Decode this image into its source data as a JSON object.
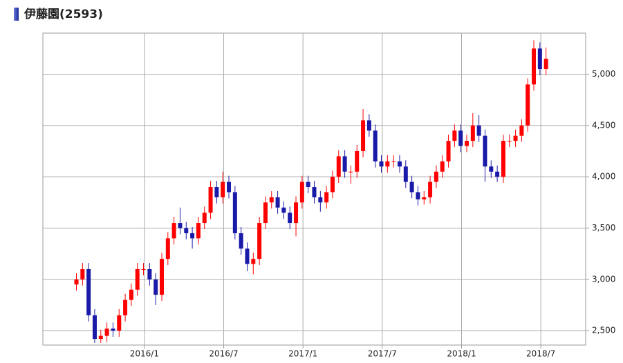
{
  "chart_data": {
    "type": "candlestick",
    "title": "伊藤園(2593)",
    "xlim": [
      0,
      178
    ],
    "ylim": [
      2360,
      5400
    ],
    "yticks": [
      {
        "value": 2500,
        "label": "2,500"
      },
      {
        "value": 3000,
        "label": "3,000"
      },
      {
        "value": 3500,
        "label": "3,500"
      },
      {
        "value": 4000,
        "label": "4,000"
      },
      {
        "value": 4500,
        "label": "4,500"
      },
      {
        "value": 5000,
        "label": "5,000"
      }
    ],
    "xticks": [
      {
        "value": 33.3,
        "label": "2016/1"
      },
      {
        "value": 59.3,
        "label": "2016/7"
      },
      {
        "value": 85.3,
        "label": "2017/1"
      },
      {
        "value": 111.3,
        "label": "2017/7"
      },
      {
        "value": 137.3,
        "label": "2018/1"
      },
      {
        "value": 163.3,
        "label": "2018/7"
      }
    ],
    "grid": true,
    "up_color": "#ff0000",
    "down_color": "#1a1aa8",
    "x": [
      11,
      13,
      15,
      17,
      19,
      21,
      23,
      25,
      27,
      29,
      31,
      33,
      35,
      37,
      39,
      41,
      43,
      45,
      47,
      49,
      51,
      53,
      55,
      57,
      59,
      61,
      63,
      65,
      67,
      69,
      71,
      73,
      75,
      77,
      79,
      81,
      83,
      85,
      87,
      89,
      91,
      93,
      95,
      97,
      99,
      101,
      103,
      105,
      107,
      109,
      111,
      113,
      115,
      117,
      119,
      121,
      123,
      125,
      127,
      129,
      131,
      133,
      135,
      137,
      139,
      141,
      143,
      145,
      147,
      149,
      151,
      153,
      155,
      157,
      159,
      161,
      163,
      165
    ],
    "open": [
      2950,
      3000,
      3100,
      2650,
      2420,
      2450,
      2520,
      2500,
      2650,
      2800,
      2900,
      3100,
      3100,
      3000,
      2850,
      3200,
      3400,
      3550,
      3500,
      3450,
      3400,
      3550,
      3650,
      3900,
      3800,
      3950,
      3850,
      3450,
      3300,
      3150,
      3200,
      3550,
      3750,
      3800,
      3700,
      3650,
      3550,
      3750,
      3950,
      3900,
      3800,
      3750,
      3850,
      4000,
      4200,
      4050,
      4050,
      4250,
      4550,
      4450,
      4150,
      4100,
      4150,
      4150,
      4100,
      3950,
      3850,
      3780,
      3800,
      3950,
      4050,
      4150,
      4350,
      4450,
      4300,
      4350,
      4500,
      4400,
      4100,
      4050,
      4000,
      4350,
      4350,
      4400,
      4500,
      4900,
      5250,
      5050
    ],
    "high": [
      3060,
      3160,
      3160,
      2710,
      2510,
      2580,
      2580,
      2710,
      2860,
      2960,
      3160,
      3160,
      3160,
      3060,
      3260,
      3460,
      3610,
      3700,
      3560,
      3510,
      3610,
      3710,
      3960,
      3960,
      4050,
      4010,
      3910,
      3510,
      3360,
      3260,
      3610,
      3810,
      3860,
      3860,
      3760,
      3710,
      3810,
      4010,
      4010,
      3960,
      3860,
      3910,
      4060,
      4260,
      4260,
      4110,
      4310,
      4660,
      4610,
      4510,
      4210,
      4210,
      4210,
      4210,
      4160,
      4010,
      3910,
      3860,
      4010,
      4110,
      4210,
      4410,
      4510,
      4510,
      4410,
      4620,
      4600,
      4460,
      4160,
      4110,
      4410,
      4410,
      4460,
      4560,
      4960,
      5330,
      5310,
      5260
    ],
    "low": [
      2890,
      2940,
      2590,
      2380,
      2380,
      2390,
      2440,
      2440,
      2590,
      2740,
      2840,
      3040,
      2940,
      2750,
      2790,
      3140,
      3340,
      3440,
      3390,
      3300,
      3340,
      3490,
      3590,
      3740,
      3740,
      3790,
      3390,
      3240,
      3080,
      3050,
      3140,
      3490,
      3690,
      3640,
      3590,
      3490,
      3420,
      3690,
      3840,
      3740,
      3660,
      3690,
      3790,
      3940,
      3990,
      3930,
      3990,
      4190,
      4390,
      4090,
      4040,
      4040,
      4090,
      4040,
      3890,
      3790,
      3720,
      3730,
      3740,
      3890,
      3990,
      4090,
      4290,
      4240,
      4240,
      4290,
      4340,
      3950,
      3990,
      3950,
      3940,
      4290,
      4290,
      4340,
      4440,
      4840,
      4990,
      4990
    ],
    "close": [
      3000,
      3100,
      2650,
      2420,
      2450,
      2520,
      2500,
      2650,
      2800,
      2900,
      3100,
      3100,
      3000,
      2850,
      3200,
      3400,
      3550,
      3500,
      3450,
      3400,
      3550,
      3650,
      3900,
      3800,
      3950,
      3850,
      3450,
      3300,
      3150,
      3200,
      3550,
      3750,
      3800,
      3700,
      3650,
      3550,
      3750,
      3950,
      3900,
      3800,
      3750,
      3850,
      4000,
      4200,
      4050,
      4050,
      4250,
      4550,
      4450,
      4150,
      4100,
      4150,
      4150,
      4100,
      3950,
      3850,
      3780,
      3800,
      3950,
      4050,
      4150,
      4350,
      4450,
      4300,
      4350,
      4500,
      4400,
      4100,
      4050,
      4000,
      4350,
      4350,
      4400,
      4500,
      4900,
      5250,
      5050,
      5150
    ]
  }
}
